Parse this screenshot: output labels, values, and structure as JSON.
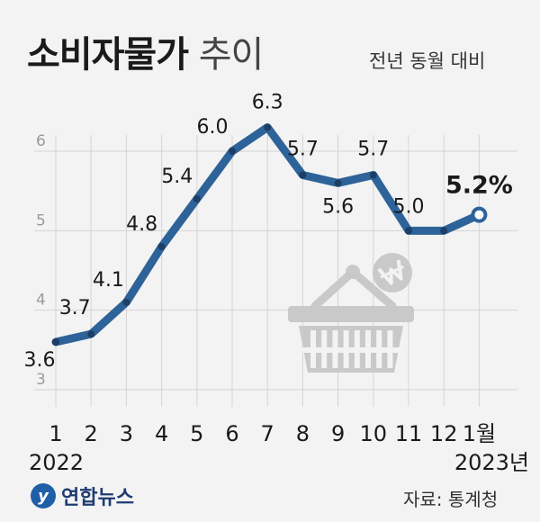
{
  "title_bold": "소비자물가",
  "title_light": "추이",
  "subtitle": "전년 동월 대비",
  "source": "자료: 통계청",
  "logo": "연합뉴스",
  "logo_mark": "y",
  "colors": {
    "line": "#2e6399",
    "grid": "#d4d4d4",
    "basket": "#c9c9c9",
    "background": "#f3f3f3"
  },
  "chart_data": {
    "type": "line",
    "categories": [
      "1",
      "2",
      "3",
      "4",
      "5",
      "6",
      "7",
      "8",
      "9",
      "10",
      "11",
      "12",
      "1월"
    ],
    "x_year_labels": [
      {
        "category": "1",
        "label": "2022"
      },
      {
        "category": "1월",
        "label": "2023년"
      }
    ],
    "values": [
      3.6,
      3.7,
      4.1,
      4.8,
      5.4,
      6.0,
      6.3,
      5.7,
      5.6,
      5.7,
      5.0,
      5.0,
      5.2
    ],
    "data_labels": [
      "3.6",
      "3.7",
      "4.1",
      "4.8",
      "5.4",
      "6.0",
      "6.3",
      "5.7",
      "5.6",
      "5.7",
      "5.0",
      "",
      "5.2%"
    ],
    "ylim": [
      3,
      6.5
    ],
    "yticks": [
      "3",
      "4",
      "5",
      "6"
    ],
    "grid": true,
    "icon": "shopping-basket-won-icon"
  }
}
